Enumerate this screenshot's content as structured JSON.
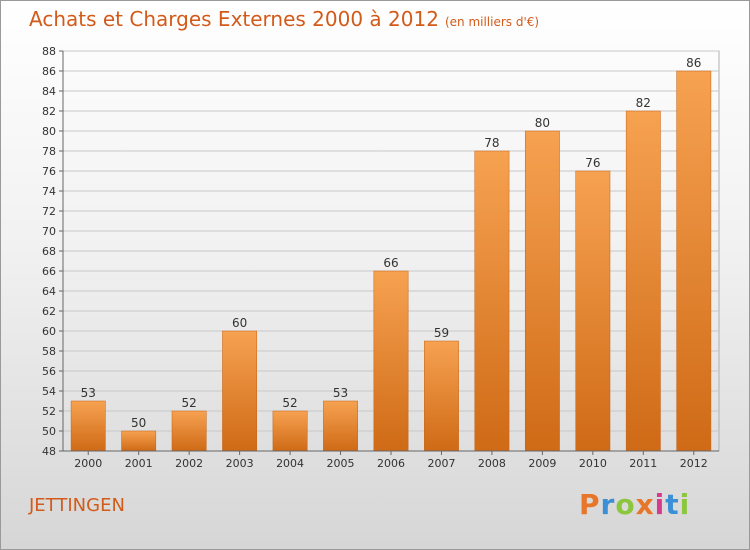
{
  "header": {
    "title": "Achats et Charges Externes 2000 à 2012",
    "subtitle": "(en milliers d'€)"
  },
  "footer": {
    "city": "JETTINGEN",
    "logo_text": "Proxiti",
    "logo_colors": [
      "#e8762a",
      "#3a8fd6",
      "#8cc63f",
      "#e8762a",
      "#d63a8c",
      "#3a8fd6",
      "#8cc63f"
    ]
  },
  "chart_data": {
    "type": "bar",
    "categories": [
      "2000",
      "2001",
      "2002",
      "2003",
      "2004",
      "2005",
      "2006",
      "2007",
      "2008",
      "2009",
      "2010",
      "2011",
      "2012"
    ],
    "values": [
      53,
      50,
      52,
      60,
      52,
      53,
      66,
      59,
      78,
      80,
      76,
      82,
      86
    ],
    "title": "Achats et Charges Externes 2000 à 2012",
    "xlabel": "",
    "ylabel": "",
    "ylim": [
      48,
      88
    ],
    "yticks": [
      48,
      50,
      52,
      54,
      56,
      58,
      60,
      62,
      64,
      66,
      68,
      70,
      72,
      74,
      76,
      78,
      80,
      82,
      84,
      86,
      88
    ],
    "grid": true,
    "bar_color": "#f08a2c"
  }
}
